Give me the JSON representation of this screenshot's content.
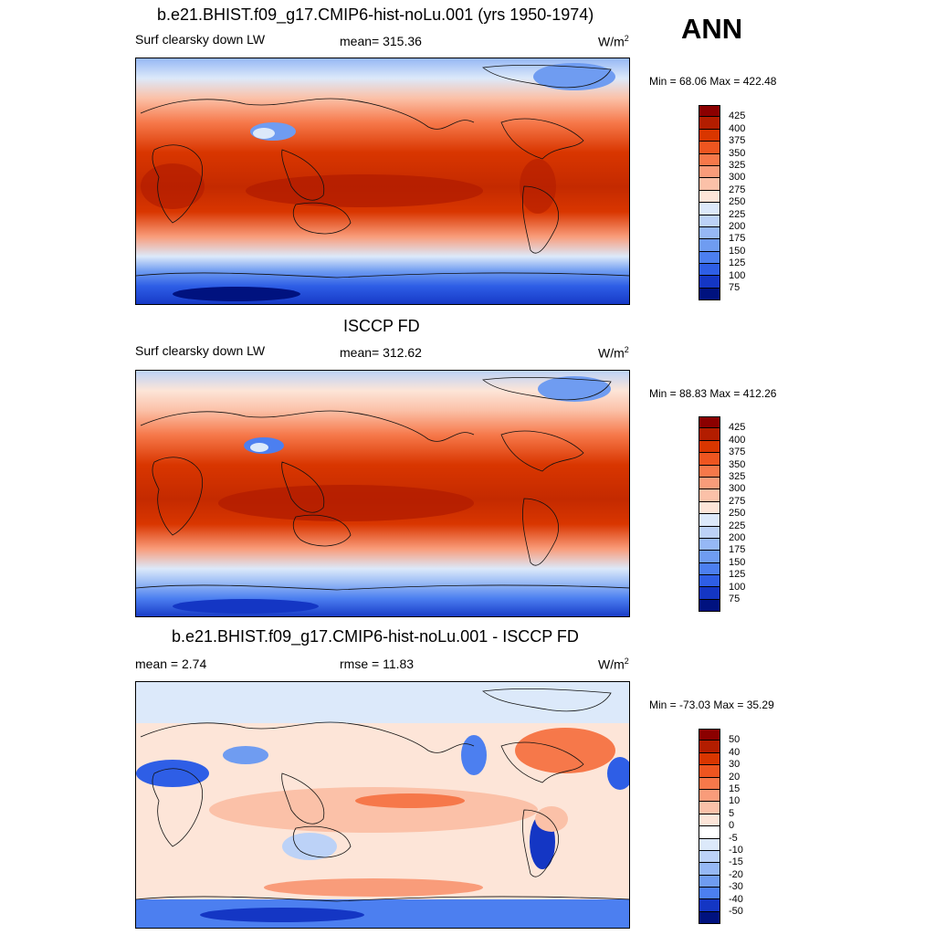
{
  "season": "ANN",
  "panels": [
    {
      "title": "b.e21.BHIST.f09_g17.CMIP6-hist-noLu.001 (yrs 1950-1974)",
      "left_label": "Surf clearsky down LW",
      "center_label": "mean= 315.36",
      "units": "W/m",
      "units_sup": "2",
      "minmax": "Min =  68.06 Max = 422.48",
      "levels": [
        "425",
        "400",
        "375",
        "350",
        "325",
        "300",
        "275",
        "250",
        "225",
        "200",
        "175",
        "150",
        "125",
        "100",
        "75"
      ],
      "colors": [
        "#8b0000",
        "#b31d00",
        "#d93600",
        "#ee5520",
        "#f6784a",
        "#f99c7a",
        "#fbc1a8",
        "#fde5d8",
        "#dce9fa",
        "#bcd2f7",
        "#96b8f5",
        "#6f9cf1",
        "#4c7ff0",
        "#2e5ee6",
        "#1436c4",
        "#00127f"
      ]
    },
    {
      "title": "ISCCP FD",
      "left_label": "Surf clearsky down LW",
      "center_label": "mean= 312.62",
      "units": "W/m",
      "units_sup": "2",
      "minmax": "Min =  88.83 Max = 412.26",
      "levels": [
        "425",
        "400",
        "375",
        "350",
        "325",
        "300",
        "275",
        "250",
        "225",
        "200",
        "175",
        "150",
        "125",
        "100",
        "75"
      ],
      "colors": [
        "#8b0000",
        "#b31d00",
        "#d93600",
        "#ee5520",
        "#f6784a",
        "#f99c7a",
        "#fbc1a8",
        "#fde5d8",
        "#dce9fa",
        "#bcd2f7",
        "#96b8f5",
        "#6f9cf1",
        "#4c7ff0",
        "#2e5ee6",
        "#1436c4",
        "#00127f"
      ]
    },
    {
      "title": "b.e21.BHIST.f09_g17.CMIP6-hist-noLu.001 - ISCCP FD",
      "left_label": "mean =   2.74",
      "center_label": "rmse =  11.83",
      "units": "W/m",
      "units_sup": "2",
      "minmax": "Min = -73.03 Max =  35.29",
      "levels": [
        "50",
        "40",
        "30",
        "20",
        "15",
        "10",
        "5",
        "0",
        "-5",
        "-10",
        "-15",
        "-20",
        "-30",
        "-40",
        "-50"
      ],
      "colors": [
        "#8b0000",
        "#b31d00",
        "#d93600",
        "#ee5520",
        "#f6784a",
        "#f99c7a",
        "#fbc1a8",
        "#fde5d8",
        "#ffffff",
        "#dce9fa",
        "#bcd2f7",
        "#96b8f5",
        "#6f9cf1",
        "#4c7ff0",
        "#1436c4",
        "#00127f"
      ]
    }
  ]
}
